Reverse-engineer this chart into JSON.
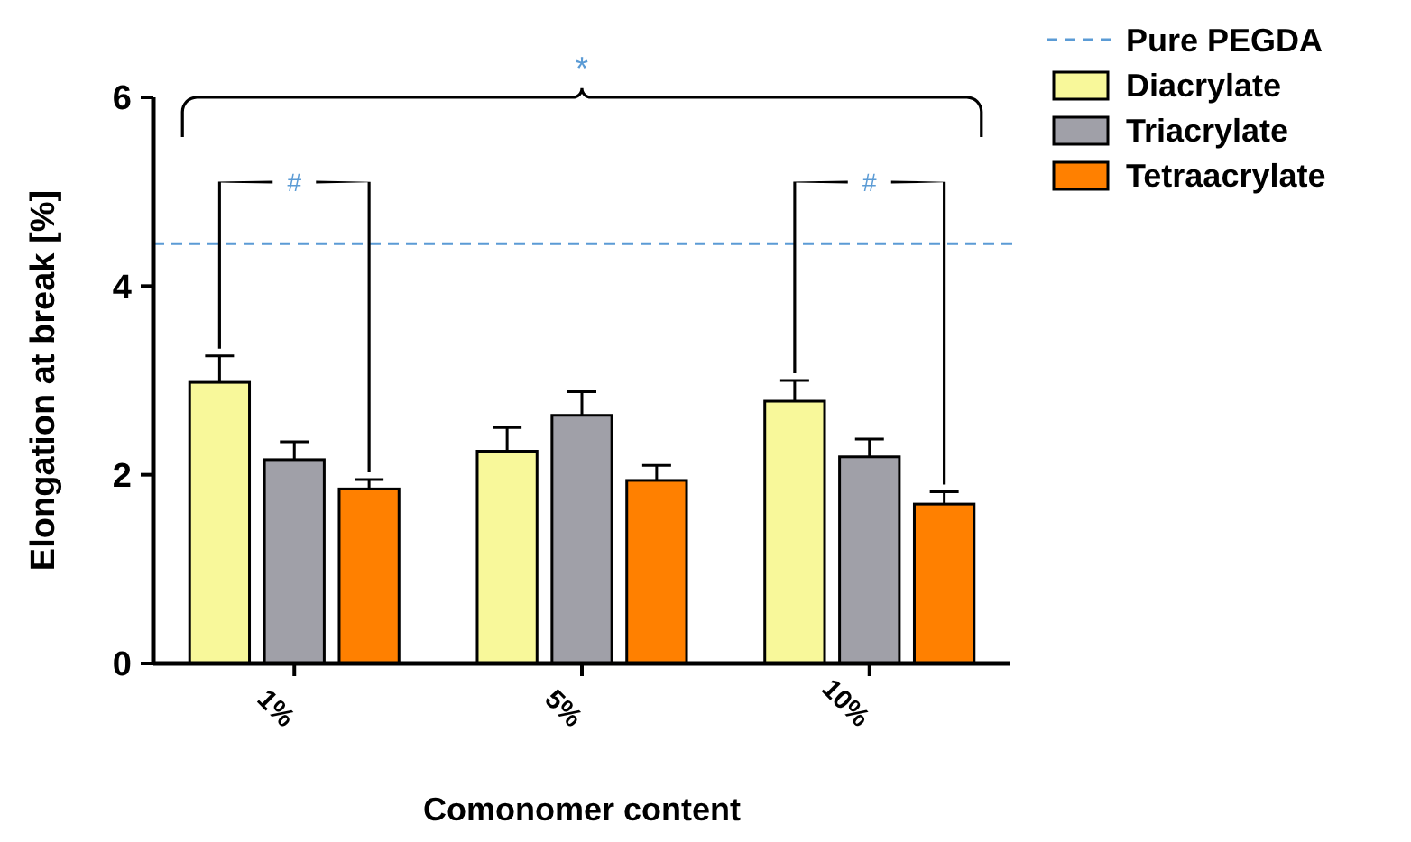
{
  "chart_data": {
    "type": "bar",
    "xlabel": "Comonomer content",
    "ylabel": "Elongation at break [%]",
    "categories": [
      "1%",
      "5%",
      "10%"
    ],
    "series": [
      {
        "name": "Diacrylate",
        "color": "#f8f89a",
        "values": [
          2.98,
          2.25,
          2.78
        ],
        "errors": [
          0.28,
          0.25,
          0.22
        ]
      },
      {
        "name": "Triacrylate",
        "color": "#a0a0a8",
        "values": [
          2.16,
          2.63,
          2.19
        ],
        "errors": [
          0.19,
          0.25,
          0.19
        ]
      },
      {
        "name": "Tetraacrylate",
        "color": "#ff8000",
        "values": [
          1.85,
          1.94,
          1.69
        ],
        "errors": [
          0.1,
          0.16,
          0.13
        ]
      }
    ],
    "ylim": [
      0,
      6
    ],
    "yticks": [
      0,
      2,
      4,
      6
    ],
    "grid": false,
    "legend": "top right",
    "ref_lines": [
      {
        "axis": "y",
        "value": 4.45,
        "label": "Pure PEGDA",
        "color": "#5b9bd5",
        "line_style": "dashed"
      }
    ],
    "annotations": [
      "*",
      "#",
      "#"
    ]
  }
}
